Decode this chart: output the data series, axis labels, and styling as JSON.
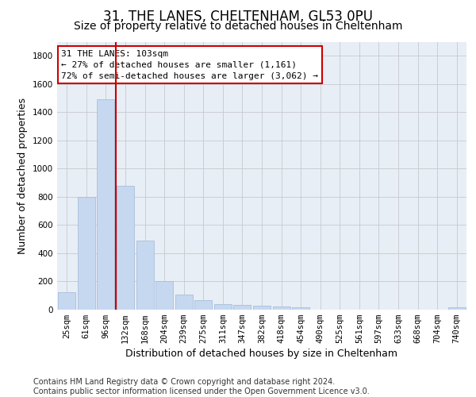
{
  "title1": "31, THE LANES, CHELTENHAM, GL53 0PU",
  "title2": "Size of property relative to detached houses in Cheltenham",
  "xlabel": "Distribution of detached houses by size in Cheltenham",
  "ylabel": "Number of detached properties",
  "categories": [
    "25sqm",
    "61sqm",
    "96sqm",
    "132sqm",
    "168sqm",
    "204sqm",
    "239sqm",
    "275sqm",
    "311sqm",
    "347sqm",
    "382sqm",
    "418sqm",
    "454sqm",
    "490sqm",
    "525sqm",
    "561sqm",
    "597sqm",
    "633sqm",
    "668sqm",
    "704sqm",
    "740sqm"
  ],
  "values": [
    125,
    800,
    1490,
    880,
    490,
    205,
    105,
    65,
    40,
    35,
    30,
    20,
    15,
    0,
    0,
    0,
    0,
    0,
    0,
    0,
    15
  ],
  "bar_color": "#c5d8f0",
  "bar_edgecolor": "#a0b8d8",
  "vline_color": "#cc0000",
  "vline_x_index": 2,
  "annotation_text": "31 THE LANES: 103sqm\n← 27% of detached houses are smaller (1,161)\n72% of semi-detached houses are larger (3,062) →",
  "annotation_box_color": "#ffffff",
  "annotation_border_color": "#cc0000",
  "ylim": [
    0,
    1900
  ],
  "yticks": [
    0,
    200,
    400,
    600,
    800,
    1000,
    1200,
    1400,
    1600,
    1800
  ],
  "footer": "Contains HM Land Registry data © Crown copyright and database right 2024.\nContains public sector information licensed under the Open Government Licence v3.0.",
  "bg_color": "#ffffff",
  "plot_bg_color": "#e8eef5",
  "grid_color": "#c8c8d0",
  "title1_fontsize": 12,
  "title2_fontsize": 10,
  "xlabel_fontsize": 9,
  "ylabel_fontsize": 9,
  "tick_fontsize": 7.5,
  "annotation_fontsize": 8,
  "footer_fontsize": 7
}
